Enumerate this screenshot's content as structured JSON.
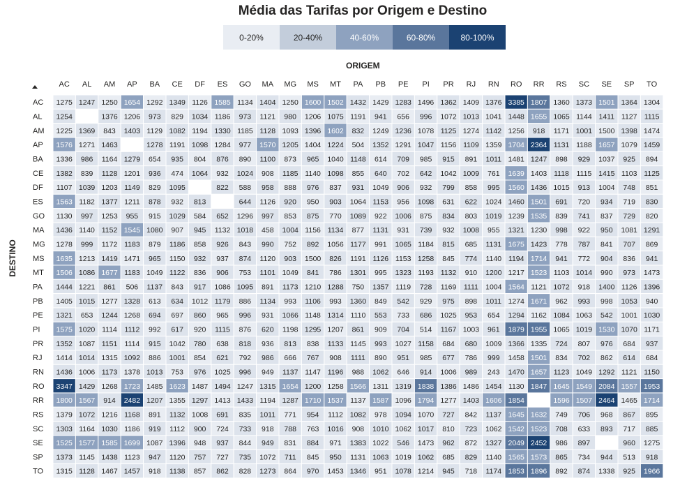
{
  "title": "Média das Tarifas por Origem e Destino",
  "legend": [
    {
      "label": "0-20%",
      "color": "#e9edf3",
      "text_color": "#252423"
    },
    {
      "label": "20-40%",
      "color": "#c3cddb",
      "text_color": "#252423"
    },
    {
      "label": "40-60%",
      "color": "#8ea2bf",
      "text_color": "#ffffff"
    },
    {
      "label": "60-80%",
      "color": "#5a769c",
      "text_color": "#ffffff"
    },
    {
      "label": "80-100%",
      "color": "#1b4272",
      "text_color": "#ffffff"
    }
  ],
  "colors": {
    "band_1": "#e9edf3",
    "band_2": "#c3cddb",
    "band_3": "#8ea2bf",
    "band_4": "#5a769c",
    "band_5": "#1b4272",
    "missing": "#ffffff",
    "grid": "#ffffff"
  },
  "chart_data": {
    "type": "heatmap",
    "title": "Média das Tarifas por Origem e Destino",
    "xlabel": "ORIGEM",
    "ylabel": "DESTINO",
    "x": [
      "AC",
      "AL",
      "AM",
      "AP",
      "BA",
      "CE",
      "DF",
      "ES",
      "GO",
      "MA",
      "MG",
      "MS",
      "MT",
      "PA",
      "PB",
      "PE",
      "PI",
      "PR",
      "RJ",
      "RN",
      "RO",
      "RR",
      "RS",
      "SC",
      "SE",
      "SP",
      "TO"
    ],
    "y": [
      "AC",
      "AL",
      "AM",
      "AP",
      "BA",
      "CE",
      "DF",
      "ES",
      "GO",
      "MA",
      "MG",
      "MS",
      "MT",
      "PA",
      "PB",
      "PE",
      "PI",
      "PR",
      "RJ",
      "RN",
      "RO",
      "RR",
      "RS",
      "SC",
      "SE",
      "SP",
      "TO"
    ],
    "values": [
      [
        1275,
        1247,
        1250,
        1654,
        1292,
        1349,
        1126,
        1585,
        1134,
        1404,
        1250,
        1600,
        1502,
        1432,
        1429,
        1283,
        1496,
        1362,
        1409,
        1376,
        3385,
        1807,
        1360,
        1373,
        1501,
        1364,
        1304
      ],
      [
        1254,
        null,
        1376,
        1206,
        973,
        829,
        1034,
        1186,
        973,
        1121,
        980,
        1206,
        1075,
        1191,
        941,
        656,
        996,
        1072,
        1013,
        1041,
        1448,
        1655,
        1065,
        1144,
        1411,
        1127,
        1115
      ],
      [
        1225,
        1369,
        843,
        1403,
        1129,
        1082,
        1194,
        1330,
        1185,
        1128,
        1093,
        1396,
        1602,
        832,
        1249,
        1236,
        1078,
        1125,
        1274,
        1142,
        1256,
        918,
        1171,
        1001,
        1500,
        1398,
        1474
      ],
      [
        1576,
        1271,
        1463,
        null,
        1278,
        1191,
        1098,
        1284,
        977,
        1570,
        1205,
        1404,
        1224,
        504,
        1352,
        1291,
        1047,
        1156,
        1109,
        1359,
        1704,
        2364,
        1131,
        1188,
        1657,
        1079,
        1459
      ],
      [
        1336,
        986,
        1164,
        1279,
        654,
        935,
        804,
        876,
        890,
        1100,
        873,
        965,
        1040,
        1148,
        614,
        709,
        985,
        915,
        891,
        1011,
        1481,
        1247,
        898,
        929,
        1037,
        925,
        894
      ],
      [
        1382,
        839,
        1128,
        1201,
        936,
        474,
        1064,
        932,
        1024,
        908,
        1185,
        1140,
        1098,
        855,
        640,
        702,
        642,
        1042,
        1009,
        761,
        1639,
        1403,
        1118,
        1115,
        1415,
        1103,
        1125
      ],
      [
        1107,
        1039,
        1203,
        1149,
        829,
        1095,
        null,
        822,
        588,
        958,
        888,
        976,
        837,
        931,
        1049,
        906,
        932,
        799,
        858,
        995,
        1560,
        1436,
        1015,
        913,
        1004,
        748,
        851
      ],
      [
        1563,
        1182,
        1377,
        1211,
        878,
        932,
        813,
        null,
        644,
        1126,
        920,
        950,
        903,
        1064,
        1153,
        956,
        1098,
        631,
        622,
        1024,
        1460,
        1501,
        691,
        720,
        934,
        719,
        830
      ],
      [
        1130,
        997,
        1253,
        955,
        915,
        1029,
        584,
        652,
        1296,
        997,
        853,
        875,
        770,
        1089,
        922,
        1006,
        875,
        834,
        803,
        1019,
        1239,
        1535,
        839,
        741,
        837,
        729,
        820
      ],
      [
        1436,
        1140,
        1152,
        1545,
        1080,
        907,
        945,
        1132,
        1018,
        458,
        1004,
        1156,
        1134,
        877,
        1131,
        931,
        739,
        932,
        1008,
        955,
        1321,
        1230,
        998,
        922,
        950,
        1081,
        1291
      ],
      [
        1278,
        999,
        1172,
        1183,
        879,
        1186,
        858,
        926,
        843,
        990,
        752,
        892,
        1056,
        1177,
        991,
        1065,
        1184,
        815,
        685,
        1131,
        1675,
        1423,
        778,
        787,
        841,
        707,
        869
      ],
      [
        1635,
        1213,
        1419,
        1471,
        965,
        1150,
        932,
        937,
        874,
        1120,
        903,
        1500,
        826,
        1191,
        1126,
        1153,
        1258,
        845,
        774,
        1140,
        1194,
        1714,
        941,
        772,
        904,
        836,
        941
      ],
      [
        1506,
        1086,
        1677,
        1183,
        1049,
        1122,
        836,
        906,
        753,
        1101,
        1049,
        841,
        786,
        1301,
        995,
        1323,
        1193,
        1132,
        910,
        1200,
        1217,
        1523,
        1103,
        1014,
        990,
        973,
        1473
      ],
      [
        1444,
        1221,
        861,
        506,
        1137,
        843,
        917,
        1086,
        1095,
        891,
        1173,
        1210,
        1288,
        750,
        1357,
        1119,
        728,
        1169,
        1111,
        1004,
        1564,
        1121,
        1072,
        918,
        1400,
        1126,
        1396
      ],
      [
        1405,
        1015,
        1277,
        1328,
        613,
        634,
        1012,
        1179,
        886,
        1134,
        993,
        1106,
        993,
        1360,
        849,
        542,
        929,
        975,
        898,
        1011,
        1274,
        1671,
        962,
        993,
        998,
        1053,
        940
      ],
      [
        1321,
        653,
        1244,
        1268,
        694,
        697,
        860,
        965,
        996,
        931,
        1066,
        1148,
        1314,
        1110,
        553,
        733,
        686,
        1025,
        953,
        654,
        1294,
        1162,
        1084,
        1063,
        542,
        1001,
        1030
      ],
      [
        1575,
        1020,
        1114,
        1112,
        992,
        617,
        920,
        1115,
        876,
        620,
        1198,
        1295,
        1207,
        861,
        909,
        704,
        514,
        1167,
        1003,
        961,
        1879,
        1955,
        1065,
        1019,
        1530,
        1070,
        1171
      ],
      [
        1352,
        1087,
        1151,
        1114,
        915,
        1042,
        780,
        638,
        818,
        936,
        813,
        838,
        1133,
        1145,
        993,
        1027,
        1158,
        684,
        680,
        1009,
        1366,
        1335,
        724,
        807,
        976,
        684,
        937
      ],
      [
        1414,
        1014,
        1315,
        1092,
        886,
        1001,
        854,
        621,
        792,
        986,
        666,
        767,
        908,
        1111,
        890,
        951,
        985,
        677,
        786,
        999,
        1458,
        1501,
        834,
        702,
        862,
        614,
        684
      ],
      [
        1436,
        1006,
        1173,
        1378,
        1013,
        753,
        976,
        1025,
        996,
        949,
        1137,
        1147,
        1196,
        988,
        1062,
        646,
        914,
        1006,
        989,
        243,
        1470,
        1657,
        1123,
        1049,
        1292,
        1121,
        1150
      ],
      [
        3347,
        1429,
        1268,
        1723,
        1485,
        1623,
        1487,
        1494,
        1247,
        1315,
        1654,
        1200,
        1258,
        1566,
        1311,
        1319,
        1838,
        1386,
        1486,
        1454,
        1130,
        1847,
        1645,
        1549,
        2084,
        1557,
        1953
      ],
      [
        1800,
        1567,
        914,
        2482,
        1207,
        1355,
        1297,
        1413,
        1433,
        1194,
        1287,
        1710,
        1537,
        1137,
        1587,
        1096,
        1794,
        1277,
        1403,
        1606,
        1854,
        null,
        1596,
        1507,
        2464,
        1465,
        1714
      ],
      [
        1379,
        1072,
        1216,
        1168,
        891,
        1132,
        1008,
        691,
        835,
        1011,
        771,
        954,
        1112,
        1082,
        978,
        1094,
        1070,
        727,
        842,
        1137,
        1645,
        1632,
        749,
        706,
        968,
        867,
        895
      ],
      [
        1303,
        1164,
        1030,
        1186,
        919,
        1112,
        900,
        724,
        733,
        918,
        788,
        763,
        1016,
        908,
        1010,
        1062,
        1017,
        810,
        723,
        1062,
        1542,
        1523,
        708,
        633,
        893,
        717,
        885
      ],
      [
        1525,
        1577,
        1585,
        1699,
        1087,
        1396,
        948,
        937,
        844,
        949,
        831,
        884,
        971,
        1383,
        1022,
        546,
        1473,
        962,
        872,
        1327,
        2049,
        2452,
        986,
        897,
        null,
        960,
        1275
      ],
      [
        1373,
        1145,
        1438,
        1123,
        947,
        1120,
        757,
        727,
        735,
        1072,
        711,
        845,
        950,
        1131,
        1063,
        1019,
        1062,
        685,
        829,
        1140,
        1565,
        1573,
        865,
        734,
        944,
        513,
        918
      ],
      [
        1315,
        1128,
        1467,
        1457,
        918,
        1138,
        857,
        862,
        828,
        1273,
        864,
        970,
        1453,
        1346,
        951,
        1078,
        1214,
        945,
        718,
        1174,
        1853,
        1896,
        892,
        874,
        1338,
        925,
        1966
      ]
    ]
  }
}
